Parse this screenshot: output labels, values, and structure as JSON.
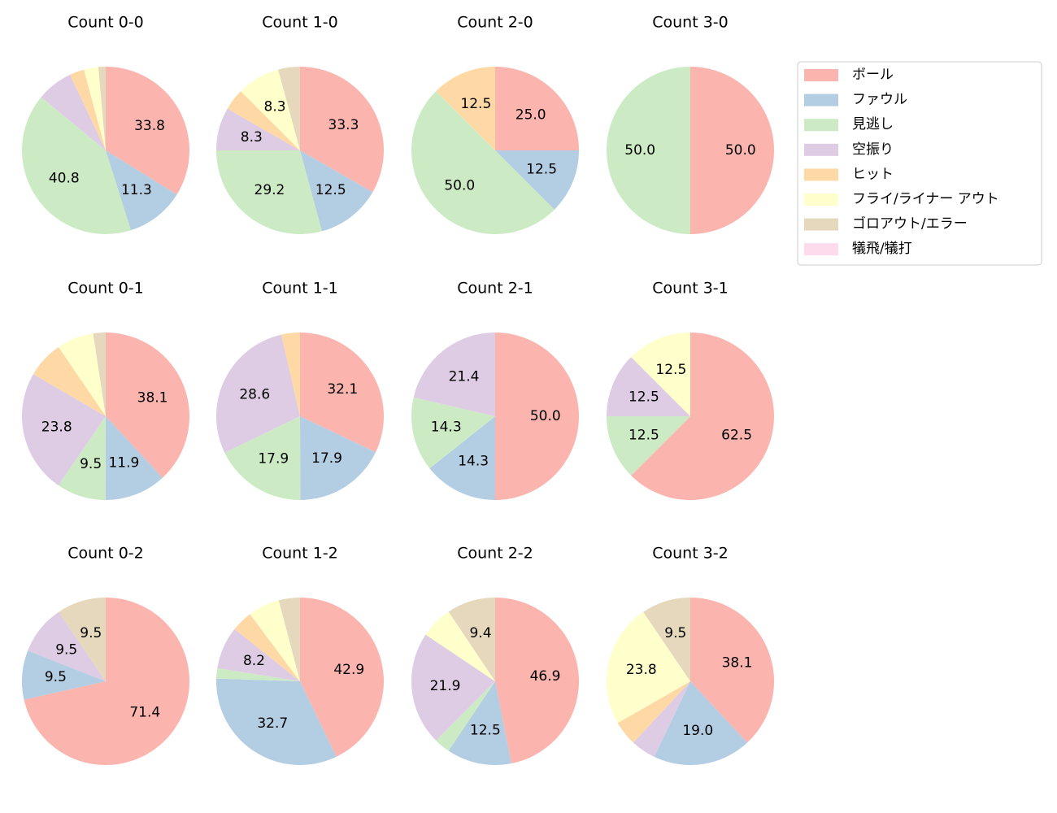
{
  "chart_data": [
    {
      "type": "pie",
      "title": "Count 0-0",
      "categories": [
        "ボール",
        "ファウル",
        "見逃し",
        "空振り",
        "ヒット",
        "フライ/ライナー アウト",
        "ゴロアウト/エラー",
        "犠飛/犠打"
      ],
      "colors": [
        "#fbb4ae",
        "#b3cde3",
        "#ccebc5",
        "#decbe4",
        "#fed9a6",
        "#ffffcc",
        "#e5d8bd",
        "#fddaec"
      ],
      "values": [
        33.8,
        11.3,
        40.8,
        7.0,
        2.8,
        2.8,
        1.4,
        0
      ],
      "value_labels": [
        "33.8",
        "11.3",
        "40.8",
        null,
        null,
        null,
        null,
        null
      ]
    },
    {
      "type": "pie",
      "title": "Count 1-0",
      "categories": [
        "ボール",
        "ファウル",
        "見逃し",
        "空振り",
        "ヒット",
        "フライ/ライナー アウト",
        "ゴロアウト/エラー",
        "犠飛/犠打"
      ],
      "colors": [
        "#fbb4ae",
        "#b3cde3",
        "#ccebc5",
        "#decbe4",
        "#fed9a6",
        "#ffffcc",
        "#e5d8bd",
        "#fddaec"
      ],
      "values": [
        33.3,
        12.5,
        29.2,
        8.3,
        4.2,
        8.3,
        4.2,
        0
      ],
      "value_labels": [
        "33.3",
        "12.5",
        "29.2",
        "8.3",
        null,
        "8.3",
        null,
        null
      ]
    },
    {
      "type": "pie",
      "title": "Count 2-0",
      "categories": [
        "ボール",
        "ファウル",
        "見逃し",
        "空振り",
        "ヒット",
        "フライ/ライナー アウト",
        "ゴロアウト/エラー",
        "犠飛/犠打"
      ],
      "colors": [
        "#fbb4ae",
        "#b3cde3",
        "#ccebc5",
        "#decbe4",
        "#fed9a6",
        "#ffffcc",
        "#e5d8bd",
        "#fddaec"
      ],
      "values": [
        25.0,
        12.5,
        50.0,
        0,
        12.5,
        0,
        0,
        0
      ],
      "value_labels": [
        "25.0",
        "12.5",
        "50.0",
        null,
        "12.5",
        null,
        null,
        null
      ]
    },
    {
      "type": "pie",
      "title": "Count 3-0",
      "categories": [
        "ボール",
        "ファウル",
        "見逃し",
        "空振り",
        "ヒット",
        "フライ/ライナー アウト",
        "ゴロアウト/エラー",
        "犠飛/犠打"
      ],
      "colors": [
        "#fbb4ae",
        "#b3cde3",
        "#ccebc5",
        "#decbe4",
        "#fed9a6",
        "#ffffcc",
        "#e5d8bd",
        "#fddaec"
      ],
      "values": [
        50.0,
        0,
        50.0,
        0,
        0,
        0,
        0,
        0
      ],
      "value_labels": [
        "50.0",
        null,
        "50.0",
        null,
        null,
        null,
        null,
        null
      ]
    },
    {
      "type": "pie",
      "title": "Count 0-1",
      "categories": [
        "ボール",
        "ファウル",
        "見逃し",
        "空振り",
        "ヒット",
        "フライ/ライナー アウト",
        "ゴロアウト/エラー",
        "犠飛/犠打"
      ],
      "colors": [
        "#fbb4ae",
        "#b3cde3",
        "#ccebc5",
        "#decbe4",
        "#fed9a6",
        "#ffffcc",
        "#e5d8bd",
        "#fddaec"
      ],
      "values": [
        38.1,
        11.9,
        9.5,
        23.8,
        7.1,
        7.1,
        2.4,
        0
      ],
      "value_labels": [
        "38.1",
        "11.9",
        "9.5",
        "23.8",
        null,
        null,
        null,
        null
      ]
    },
    {
      "type": "pie",
      "title": "Count 1-1",
      "categories": [
        "ボール",
        "ファウル",
        "見逃し",
        "空振り",
        "ヒット",
        "フライ/ライナー アウト",
        "ゴロアウト/エラー",
        "犠飛/犠打"
      ],
      "colors": [
        "#fbb4ae",
        "#b3cde3",
        "#ccebc5",
        "#decbe4",
        "#fed9a6",
        "#ffffcc",
        "#e5d8bd",
        "#fddaec"
      ],
      "values": [
        32.1,
        17.9,
        17.9,
        28.6,
        3.6,
        0,
        0,
        0
      ],
      "value_labels": [
        "32.1",
        "17.9",
        "17.9",
        "28.6",
        null,
        null,
        null,
        null
      ]
    },
    {
      "type": "pie",
      "title": "Count 2-1",
      "categories": [
        "ボール",
        "ファウル",
        "見逃し",
        "空振り",
        "ヒット",
        "フライ/ライナー アウト",
        "ゴロアウト/エラー",
        "犠飛/犠打"
      ],
      "colors": [
        "#fbb4ae",
        "#b3cde3",
        "#ccebc5",
        "#decbe4",
        "#fed9a6",
        "#ffffcc",
        "#e5d8bd",
        "#fddaec"
      ],
      "values": [
        50.0,
        14.3,
        14.3,
        21.4,
        0,
        0,
        0,
        0
      ],
      "value_labels": [
        "50.0",
        "14.3",
        "14.3",
        "21.4",
        null,
        null,
        null,
        null
      ]
    },
    {
      "type": "pie",
      "title": "Count 3-1",
      "categories": [
        "ボール",
        "ファウル",
        "見逃し",
        "空振り",
        "ヒット",
        "フライ/ライナー アウト",
        "ゴロアウト/エラー",
        "犠飛/犠打"
      ],
      "colors": [
        "#fbb4ae",
        "#b3cde3",
        "#ccebc5",
        "#decbe4",
        "#fed9a6",
        "#ffffcc",
        "#e5d8bd",
        "#fddaec"
      ],
      "values": [
        62.5,
        0,
        12.5,
        12.5,
        0,
        12.5,
        0,
        0
      ],
      "value_labels": [
        "62.5",
        null,
        "12.5",
        "12.5",
        null,
        "12.5",
        null,
        null
      ]
    },
    {
      "type": "pie",
      "title": "Count 0-2",
      "categories": [
        "ボール",
        "ファウル",
        "見逃し",
        "空振り",
        "ヒット",
        "フライ/ライナー アウト",
        "ゴロアウト/エラー",
        "犠飛/犠打"
      ],
      "colors": [
        "#fbb4ae",
        "#b3cde3",
        "#ccebc5",
        "#decbe4",
        "#fed9a6",
        "#ffffcc",
        "#e5d8bd",
        "#fddaec"
      ],
      "values": [
        71.4,
        9.5,
        0,
        9.5,
        0,
        0,
        9.5,
        0
      ],
      "value_labels": [
        "71.4",
        "9.5",
        null,
        "9.5",
        null,
        null,
        "9.5",
        null
      ]
    },
    {
      "type": "pie",
      "title": "Count 1-2",
      "categories": [
        "ボール",
        "ファウル",
        "見逃し",
        "空振り",
        "ヒット",
        "フライ/ライナー アウト",
        "ゴロアウト/エラー",
        "犠飛/犠打"
      ],
      "colors": [
        "#fbb4ae",
        "#b3cde3",
        "#ccebc5",
        "#decbe4",
        "#fed9a6",
        "#ffffcc",
        "#e5d8bd",
        "#fddaec"
      ],
      "values": [
        42.9,
        32.7,
        2.0,
        8.2,
        4.1,
        6.1,
        4.1,
        0
      ],
      "value_labels": [
        "42.9",
        "32.7",
        null,
        "8.2",
        null,
        null,
        null,
        null
      ]
    },
    {
      "type": "pie",
      "title": "Count 2-2",
      "categories": [
        "ボール",
        "ファウル",
        "見逃し",
        "空振り",
        "ヒット",
        "フライ/ライナー アウト",
        "ゴロアウト/エラー",
        "犠飛/犠打"
      ],
      "colors": [
        "#fbb4ae",
        "#b3cde3",
        "#ccebc5",
        "#decbe4",
        "#fed9a6",
        "#ffffcc",
        "#e5d8bd",
        "#fddaec"
      ],
      "values": [
        46.9,
        12.5,
        3.1,
        21.9,
        0,
        6.2,
        9.4,
        0
      ],
      "value_labels": [
        "46.9",
        "12.5",
        null,
        "21.9",
        null,
        null,
        "9.4",
        null
      ]
    },
    {
      "type": "pie",
      "title": "Count 3-2",
      "categories": [
        "ボール",
        "ファウル",
        "見逃し",
        "空振り",
        "ヒット",
        "フライ/ライナー アウト",
        "ゴロアウト/エラー",
        "犠飛/犠打"
      ],
      "colors": [
        "#fbb4ae",
        "#b3cde3",
        "#ccebc5",
        "#decbe4",
        "#fed9a6",
        "#ffffcc",
        "#e5d8bd",
        "#fddaec"
      ],
      "values": [
        38.1,
        19.0,
        0,
        4.8,
        4.8,
        23.8,
        9.5,
        0
      ],
      "value_labels": [
        "38.1",
        "19.0",
        null,
        null,
        null,
        "23.8",
        "9.5",
        null
      ]
    }
  ]
}
